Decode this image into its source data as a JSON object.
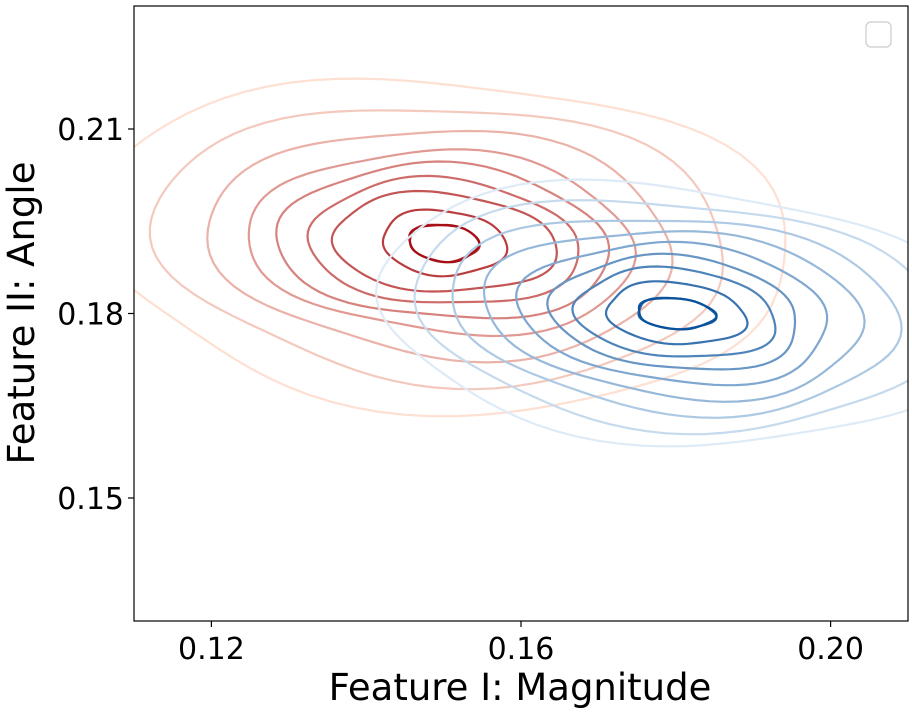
{
  "chart_data": {
    "type": "contour",
    "title": "",
    "xlabel": "Feature I: Magnitude",
    "ylabel": "Feature II: Angle",
    "xlim": [
      0.11,
      0.21
    ],
    "ylim": [
      0.13,
      0.23
    ],
    "xticks": [
      0.12,
      0.16,
      0.2
    ],
    "xtick_labels": [
      "0.12",
      "0.16",
      "0.20"
    ],
    "yticks": [
      0.15,
      0.18,
      0.21
    ],
    "ytick_labels": [
      "0.15",
      "0.18",
      "0.21"
    ],
    "grid": false,
    "legend": {
      "placement": "top-right",
      "entries": []
    },
    "series": [
      {
        "colormap": "Reds",
        "color_light": "#fee0d2",
        "color_dark": "#a50f15",
        "center": [
          0.15,
          0.1915
        ],
        "spread_x": [
          0.0045,
          0.0045,
          0.008,
          0.0145,
          0.0175,
          0.0215,
          0.025,
          0.03,
          0.037,
          0.045
        ],
        "spread_y": [
          0.003,
          0.003,
          0.0053,
          0.008,
          0.0102,
          0.0125,
          0.0148,
          0.0185,
          0.0225,
          0.027
        ],
        "levels": 10
      },
      {
        "colormap": "Blues",
        "color_light": "#deebf7",
        "color_dark": "#08519c",
        "center": [
          0.18,
          0.18
        ],
        "spread_x": [
          0.005,
          0.005,
          0.009,
          0.013,
          0.016,
          0.02,
          0.0245,
          0.029,
          0.034,
          0.039
        ],
        "spread_y": [
          0.0025,
          0.0025,
          0.005,
          0.0072,
          0.0092,
          0.0113,
          0.0135,
          0.0158,
          0.0185,
          0.021
        ],
        "levels": 10
      }
    ]
  }
}
